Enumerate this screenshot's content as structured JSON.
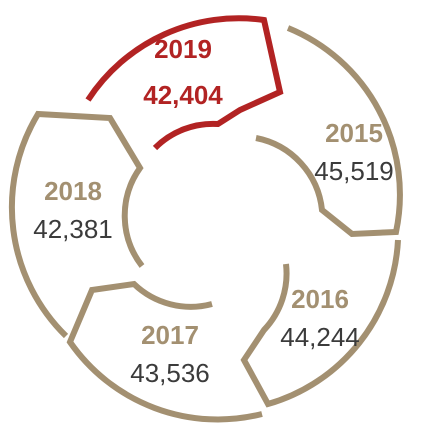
{
  "colors": {
    "segment": "#a39071",
    "highlight": "#b22323",
    "label": "#3b3b3b"
  },
  "segments": [
    {
      "year": "2019",
      "value": "42,404",
      "highlight": true
    },
    {
      "year": "2015",
      "value": "45,519",
      "highlight": false
    },
    {
      "year": "2016",
      "value": "44,244",
      "highlight": false
    },
    {
      "year": "2017",
      "value": "43,536",
      "highlight": false
    },
    {
      "year": "2018",
      "value": "42,381",
      "highlight": false
    }
  ]
}
